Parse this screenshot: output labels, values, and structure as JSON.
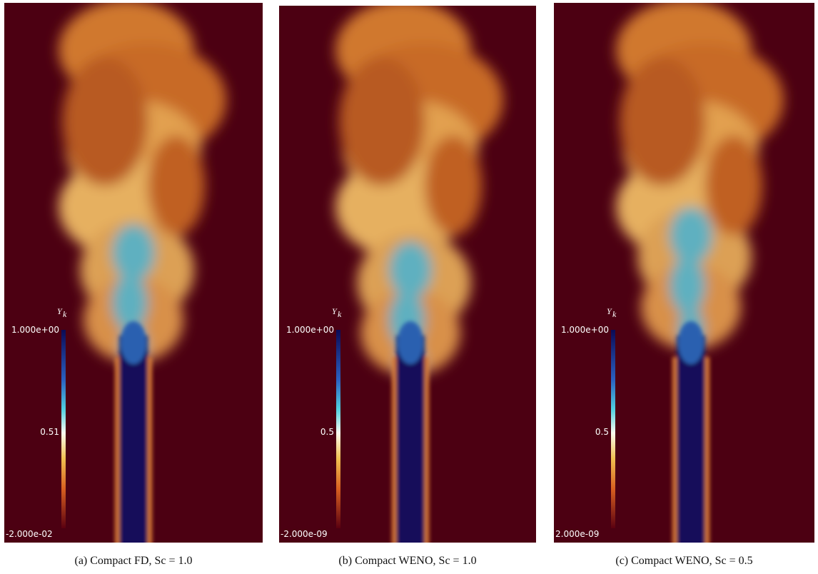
{
  "panels": [
    {
      "colorbar": {
        "title": "Y",
        "subscript": "k",
        "top": "1.000e+00",
        "middle": "0.51",
        "bottom": "-2.000e-02"
      },
      "caption": "(a)  Compact FD, Sc = 1.0"
    },
    {
      "colorbar": {
        "title": "Y",
        "subscript": "k",
        "top": "1.000e+00",
        "middle": "0.5",
        "bottom": "-2.000e-09"
      },
      "caption": "(b)  Compact WENO, Sc = 1.0"
    },
    {
      "colorbar": {
        "title": "Y",
        "subscript": "k",
        "top": "1.000e+00",
        "middle": "0.5",
        "bottom": "2.000e-09"
      },
      "caption": "(c)  Compact WENO, Sc = 0.5"
    }
  ]
}
